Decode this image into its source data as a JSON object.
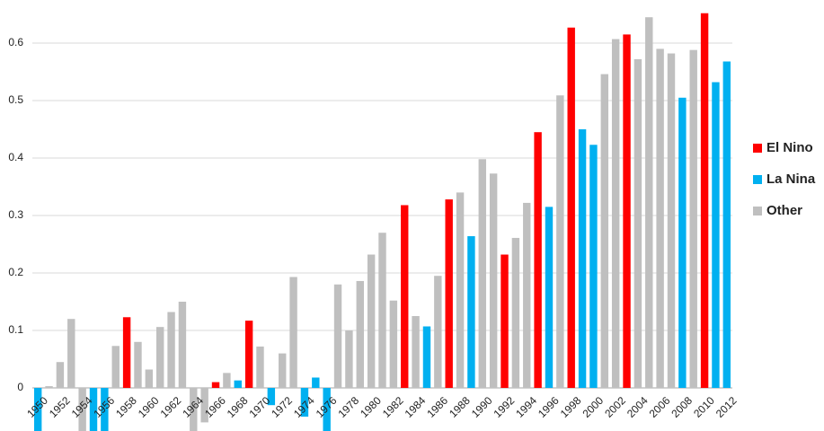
{
  "chart_data": {
    "type": "bar",
    "categories": [
      "1950",
      null,
      "1952",
      null,
      "1954",
      null,
      "1956",
      null,
      "1958",
      null,
      "1960",
      null,
      "1962",
      null,
      "1964",
      null,
      "1966",
      null,
      "1968",
      null,
      "1970",
      null,
      "1972",
      null,
      "1974",
      null,
      "1976",
      null,
      "1978",
      null,
      "1980",
      null,
      "1982",
      null,
      "1984",
      null,
      "1986",
      null,
      "1988",
      null,
      "1990",
      null,
      "1992",
      null,
      "1994",
      null,
      "1996",
      null,
      "1998",
      null,
      "2000",
      null,
      "2002",
      null,
      "2004",
      null,
      "2006",
      null,
      "2008",
      null,
      "2010",
      null,
      "2012"
    ],
    "series": [
      {
        "name": "El Nino",
        "color": "#ff0000",
        "values": [
          null,
          null,
          null,
          null,
          null,
          null,
          null,
          null,
          0.123,
          null,
          null,
          null,
          null,
          null,
          null,
          null,
          0.01,
          null,
          null,
          0.117,
          null,
          null,
          null,
          null,
          null,
          null,
          null,
          null,
          null,
          null,
          null,
          null,
          null,
          0.318,
          null,
          null,
          null,
          0.328,
          null,
          null,
          null,
          null,
          0.232,
          null,
          null,
          0.445,
          null,
          null,
          0.627,
          null,
          null,
          null,
          null,
          0.615,
          null,
          null,
          null,
          null,
          null,
          null,
          0.652,
          null,
          null
        ]
      },
      {
        "name": "La Nina",
        "color": "#00b0f0",
        "values": [
          -0.1,
          null,
          null,
          null,
          null,
          -0.1,
          -0.1,
          null,
          null,
          null,
          null,
          null,
          null,
          null,
          null,
          null,
          null,
          null,
          0.013,
          null,
          null,
          -0.03,
          null,
          null,
          -0.05,
          0.018,
          -0.1,
          null,
          null,
          null,
          null,
          null,
          null,
          null,
          null,
          0.107,
          null,
          null,
          null,
          0.264,
          null,
          null,
          null,
          null,
          null,
          null,
          0.315,
          null,
          null,
          0.45,
          0.423,
          null,
          null,
          null,
          null,
          null,
          null,
          null,
          0.505,
          null,
          null,
          0.532,
          0.568
        ]
      },
      {
        "name": "Other",
        "color": "#bfbfbf",
        "values": [
          null,
          0.003,
          0.045,
          0.12,
          -0.1,
          null,
          null,
          0.073,
          null,
          0.08,
          0.032,
          0.106,
          0.132,
          0.15,
          -0.1,
          -0.06,
          null,
          0.026,
          null,
          null,
          0.072,
          null,
          0.06,
          0.193,
          null,
          null,
          null,
          0.18,
          0.1,
          0.186,
          0.232,
          0.27,
          0.152,
          null,
          0.125,
          null,
          0.195,
          null,
          0.34,
          null,
          0.398,
          0.373,
          null,
          0.261,
          0.322,
          null,
          null,
          0.509,
          null,
          null,
          null,
          0.546,
          0.607,
          null,
          0.572,
          0.645,
          0.59,
          0.582,
          null,
          0.588,
          null,
          null,
          null
        ]
      }
    ],
    "ylim": [
      -0.075,
      0.675
    ],
    "yticks": [
      0,
      0.1,
      0.2,
      0.3,
      0.4,
      0.5,
      0.6
    ],
    "grid": true
  }
}
